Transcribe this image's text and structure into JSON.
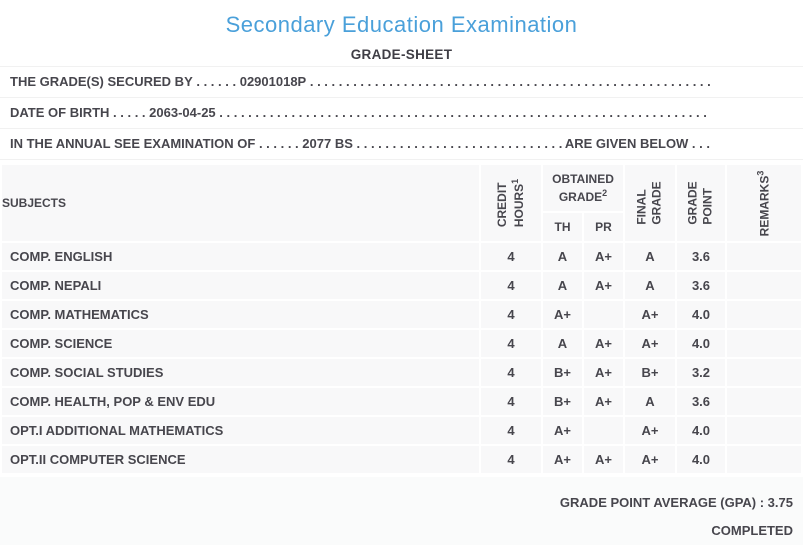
{
  "title": "Secondary Education Examination",
  "subtitle": "GRADE-SHEET",
  "dot_fill": " . . . . . . . . . . . . . . . . . . . . . . . . . . . . . . . . . . . . . . . . . . . . . . . . . . . . . . . . . . . . . . . . . . . . . . . . . . . . . . . .",
  "info_lines": [
    {
      "label": "THE GRADE(S) SECURED BY",
      "leader": " . . . . . . ",
      "value": "02901018P",
      "tail": ""
    },
    {
      "label": "DATE OF BIRTH",
      "leader": " . . . . . ",
      "value": "2063-04-25",
      "tail": ""
    },
    {
      "label": "IN THE ANNUAL SEE EXAMINATION OF",
      "leader": " . . . . . . ",
      "value": "2077 BS",
      "tail": " ARE GIVEN BELOW . . ."
    }
  ],
  "table": {
    "headers": {
      "subjects": "SUBJECTS",
      "credit_hours": {
        "line1": "CREDIT",
        "line2": "HOURS",
        "sup": "1"
      },
      "obtained_grade": {
        "line1": "OBTAINED",
        "line2": "GRADE",
        "sup": "2"
      },
      "th": "TH",
      "pr": "PR",
      "final_grade": {
        "line1": "FINAL",
        "line2": "GRADE"
      },
      "grade_point": {
        "line1": "GRADE",
        "line2": "POINT"
      },
      "remarks": {
        "line1": "REMARKS",
        "sup": "3"
      }
    },
    "rows": [
      {
        "subject": "COMP. ENGLISH",
        "credit_hours": "4",
        "th": "A",
        "pr": "A+",
        "final_grade": "A",
        "grade_point": "3.6",
        "remarks": ""
      },
      {
        "subject": "COMP. NEPALI",
        "credit_hours": "4",
        "th": "A",
        "pr": "A+",
        "final_grade": "A",
        "grade_point": "3.6",
        "remarks": ""
      },
      {
        "subject": "COMP. MATHEMATICS",
        "credit_hours": "4",
        "th": "A+",
        "pr": "",
        "final_grade": "A+",
        "grade_point": "4.0",
        "remarks": ""
      },
      {
        "subject": "COMP. SCIENCE",
        "credit_hours": "4",
        "th": "A",
        "pr": "A+",
        "final_grade": "A+",
        "grade_point": "4.0",
        "remarks": ""
      },
      {
        "subject": "COMP. SOCIAL STUDIES",
        "credit_hours": "4",
        "th": "B+",
        "pr": "A+",
        "final_grade": "B+",
        "grade_point": "3.2",
        "remarks": ""
      },
      {
        "subject": "COMP. HEALTH, POP & ENV EDU",
        "credit_hours": "4",
        "th": "B+",
        "pr": "A+",
        "final_grade": "A",
        "grade_point": "3.6",
        "remarks": ""
      },
      {
        "subject": "OPT.I ADDITIONAL MATHEMATICS",
        "credit_hours": "4",
        "th": "A+",
        "pr": "",
        "final_grade": "A+",
        "grade_point": "4.0",
        "remarks": ""
      },
      {
        "subject": "OPT.II COMPUTER SCIENCE",
        "credit_hours": "4",
        "th": "A+",
        "pr": "A+",
        "final_grade": "A+",
        "grade_point": "4.0",
        "remarks": ""
      }
    ]
  },
  "footer": {
    "gpa_line": "GRADE POINT AVERAGE (GPA) : 3.75",
    "status": "COMPLETED"
  },
  "colors": {
    "accent_blue": "#4aa0da",
    "text": "#47464d",
    "row_bg": "#f8f8f9",
    "separator": "#f1f1f1",
    "footer_bg": "#fafbfb"
  }
}
